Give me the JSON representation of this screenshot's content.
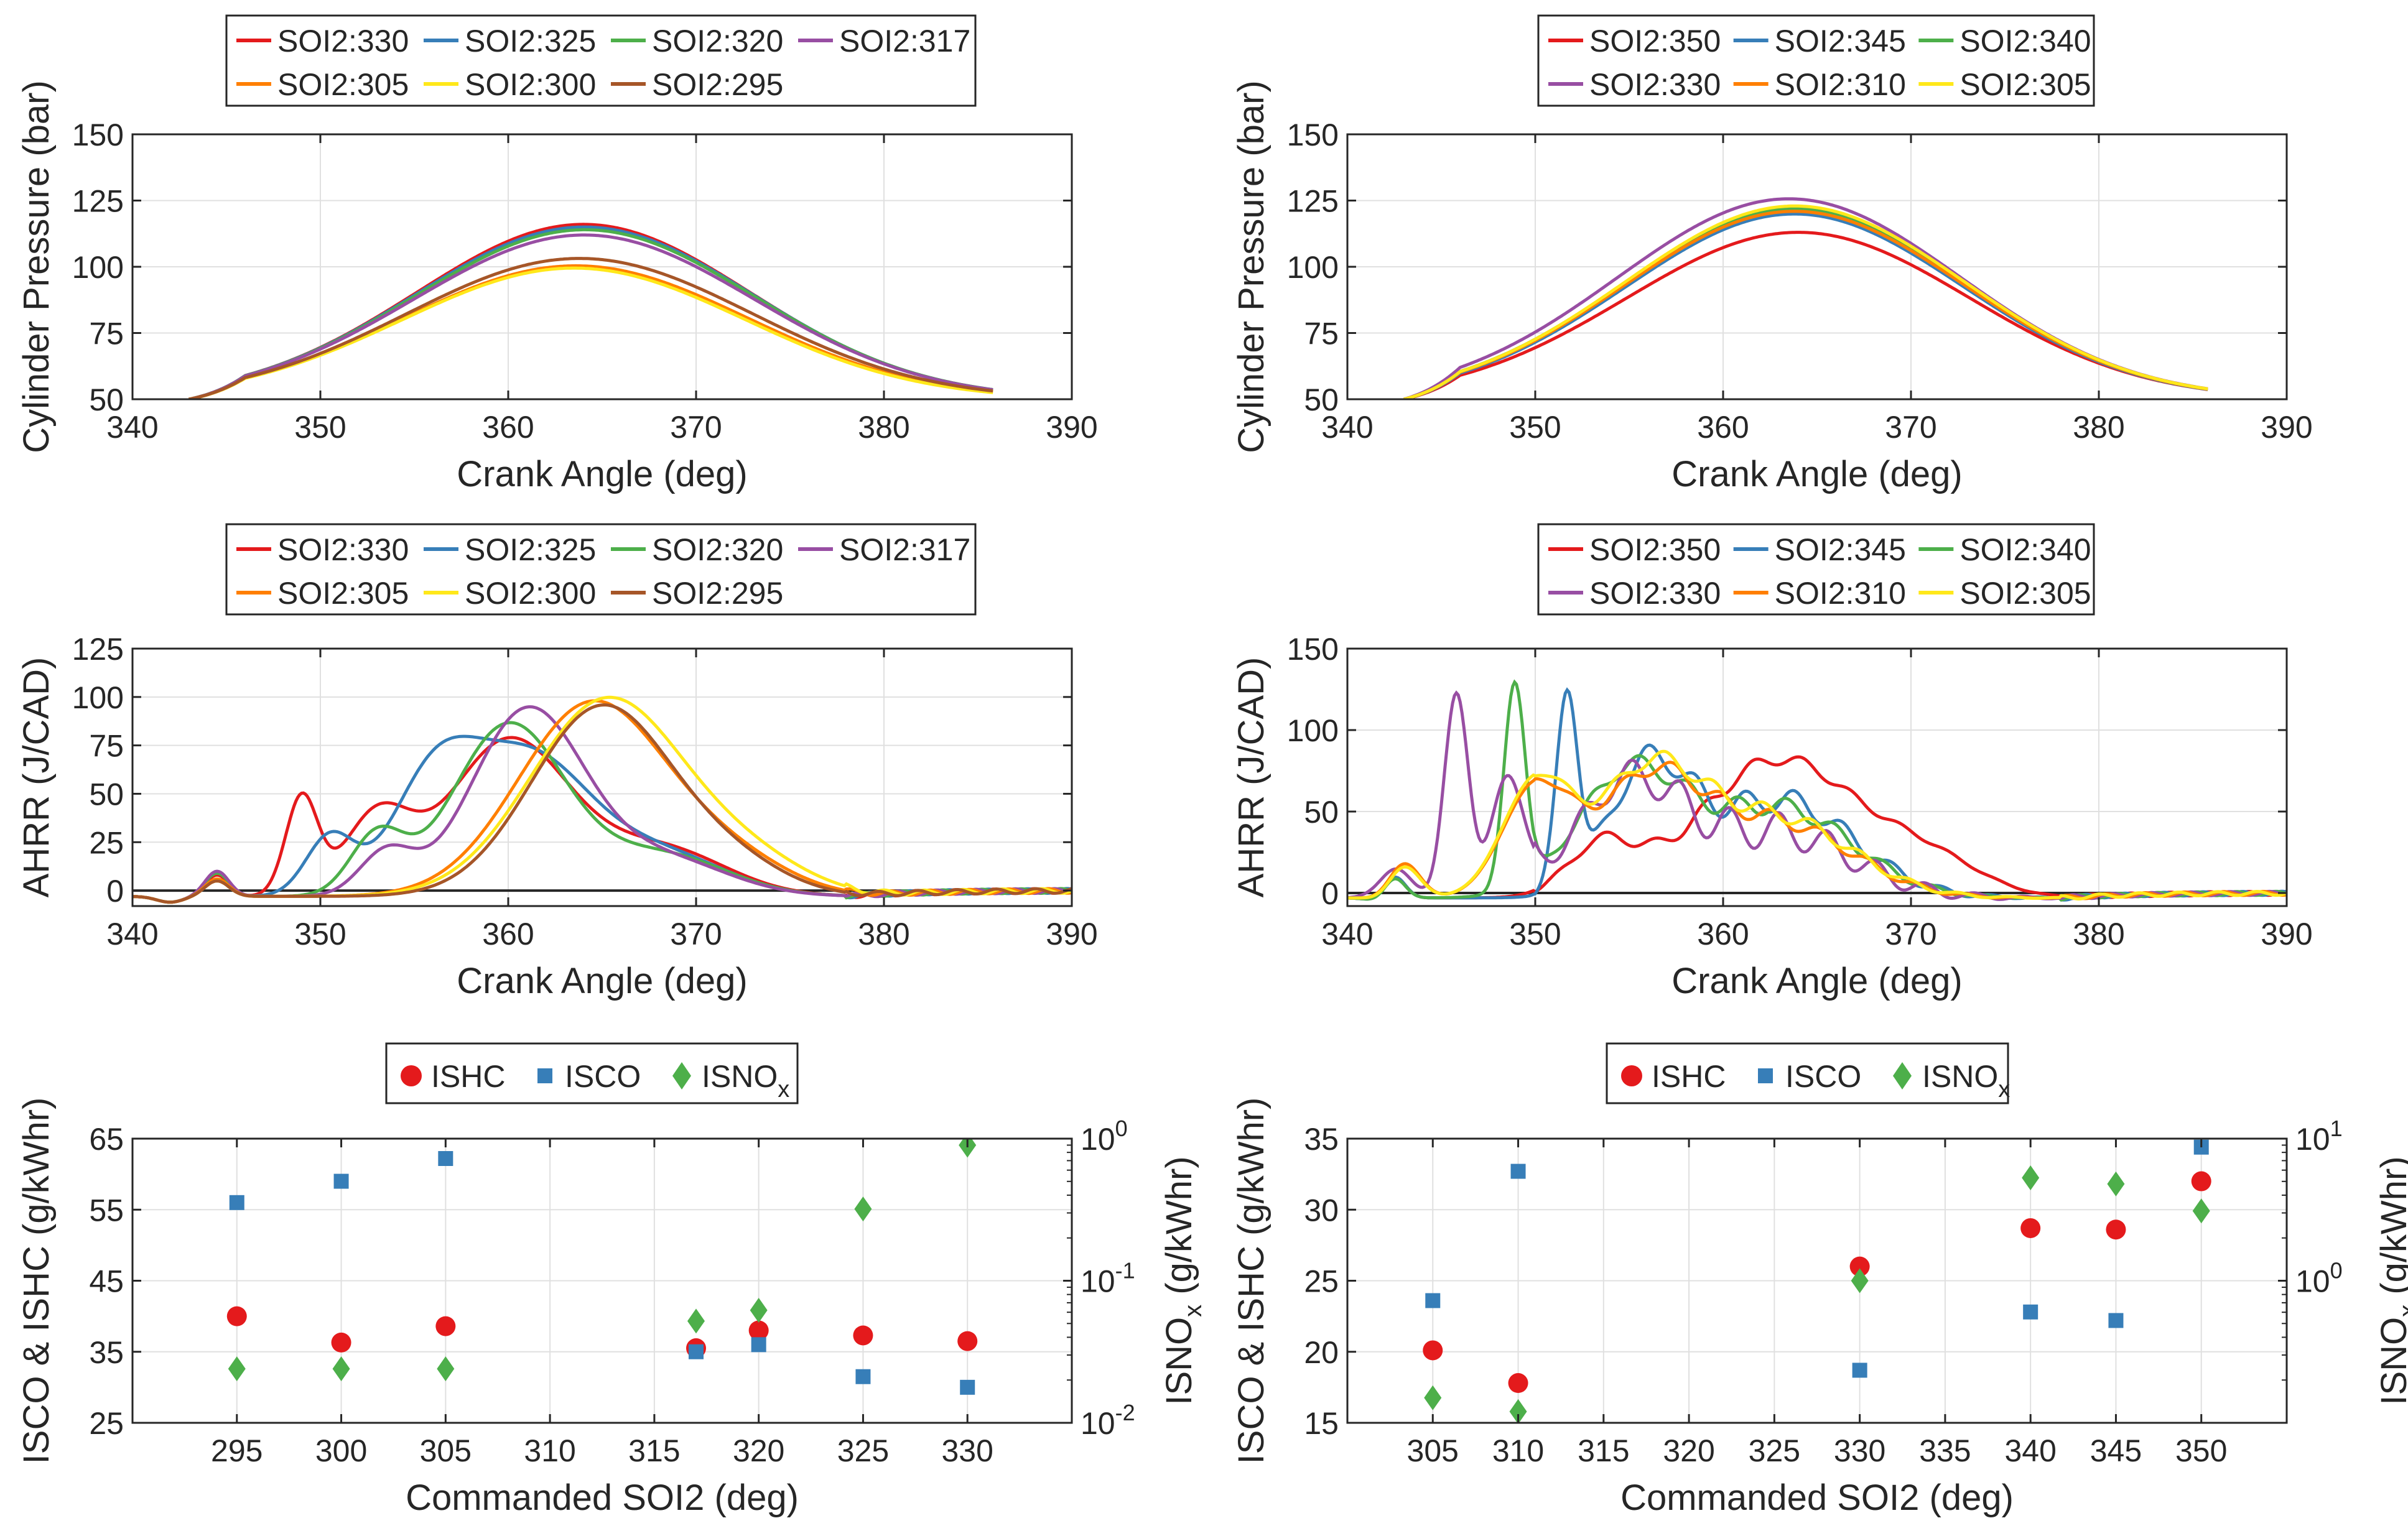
{
  "chart_data": [
    {
      "id": "p1",
      "type": "line",
      "xlabel": "Crank Angle (deg)",
      "ylabel": "Cylinder Pressure (bar)",
      "xlim": [
        340,
        390
      ],
      "ylim": [
        50,
        150
      ],
      "xticks": [
        340,
        350,
        360,
        370,
        380,
        390
      ],
      "yticks": [
        50,
        75,
        100,
        125,
        150
      ],
      "legend": {
        "columns": 4
      },
      "series": [
        {
          "name": "SOI2:330",
          "color": "#E41A1C",
          "peak_x": 364.0,
          "peak_y": 116,
          "width": 10.5
        },
        {
          "name": "SOI2:325",
          "color": "#377EB8",
          "peak_x": 364.3,
          "peak_y": 115,
          "width": 10.8
        },
        {
          "name": "SOI2:320",
          "color": "#4DAF4A",
          "peak_x": 364.6,
          "peak_y": 114,
          "width": 11.0
        },
        {
          "name": "SOI2:317",
          "color": "#984EA3",
          "peak_x": 364.5,
          "peak_y": 112,
          "width": 11.2
        },
        {
          "name": "SOI2:305",
          "color": "#FF7F00",
          "peak_x": 366.5,
          "peak_y": 100,
          "width": 12.5
        },
        {
          "name": "SOI2:300",
          "color": "#FFE81A",
          "peak_x": 366.8,
          "peak_y": 99,
          "width": 12.7
        },
        {
          "name": "SOI2:295",
          "color": "#A65628",
          "peak_x": 366.0,
          "peak_y": 103,
          "width": 12.2
        }
      ]
    },
    {
      "id": "p2",
      "type": "line",
      "xlabel": "Crank Angle (deg)",
      "ylabel": "Cylinder Pressure (bar)",
      "xlim": [
        340,
        390
      ],
      "ylim": [
        50,
        150
      ],
      "xticks": [
        340,
        350,
        360,
        370,
        380,
        390
      ],
      "yticks": [
        50,
        75,
        100,
        125,
        150
      ],
      "legend": {
        "columns": 3
      },
      "series": [
        {
          "name": "SOI2:350",
          "color": "#E41A1C",
          "peak_x": 364.0,
          "peak_y": 113,
          "width": 12.0
        },
        {
          "name": "SOI2:345",
          "color": "#377EB8",
          "peak_x": 363.0,
          "peak_y": 120,
          "width": 11.5
        },
        {
          "name": "SOI2:340",
          "color": "#4DAF4A",
          "peak_x": 362.8,
          "peak_y": 122,
          "width": 12.0
        },
        {
          "name": "SOI2:330",
          "color": "#984EA3",
          "peak_x": 362.0,
          "peak_y": 126,
          "width": 12.5
        },
        {
          "name": "SOI2:310",
          "color": "#FF7F00",
          "peak_x": 363.0,
          "peak_y": 121,
          "width": 12.0
        },
        {
          "name": "SOI2:305",
          "color": "#FFE81A",
          "peak_x": 363.2,
          "peak_y": 123,
          "width": 12.0
        }
      ]
    },
    {
      "id": "p3",
      "type": "line",
      "xlabel": "Crank Angle (deg)",
      "ylabel": "AHRR (J/CAD)",
      "xlim": [
        340,
        390
      ],
      "ylim": [
        -8,
        125
      ],
      "xticks": [
        340,
        350,
        360,
        370,
        380,
        390
      ],
      "yticks": [
        0,
        25,
        50,
        75,
        100,
        125
      ],
      "legend": {
        "columns": 4
      },
      "series": [
        {
          "name": "SOI2:330",
          "color": "#E41A1C",
          "peaks": [
            [
              344.5,
              11,
              0.9
            ],
            [
              349,
              50,
              1.2
            ],
            [
              353,
              40,
              2.5
            ],
            [
              360,
              80,
              4.5
            ],
            [
              368,
              25,
              5.0
            ]
          ]
        },
        {
          "name": "SOI2:325",
          "color": "#377EB8",
          "peaks": [
            [
              344.5,
              12,
              0.9
            ],
            [
              350.5,
              30,
              1.8
            ],
            [
              356,
              55,
              3.2
            ],
            [
              361,
              70,
              4.5
            ],
            [
              368,
              22,
              5.0
            ]
          ]
        },
        {
          "name": "SOI2:320",
          "color": "#4DAF4A",
          "peaks": [
            [
              344.5,
              12,
              0.9
            ],
            [
              353,
              30,
              2.0
            ],
            [
              360,
              88,
              4.2
            ],
            [
              368,
              22,
              5.0
            ]
          ]
        },
        {
          "name": "SOI2:317",
          "color": "#984EA3",
          "peaks": [
            [
              344.5,
              13,
              0.9
            ],
            [
              353.5,
              22,
              2.0
            ],
            [
              361,
              95,
              4.2
            ],
            [
              368,
              20,
              5.0
            ]
          ]
        },
        {
          "name": "SOI2:305",
          "color": "#FF7F00",
          "peaks": [
            [
              344.5,
              9,
              0.9
            ],
            [
              364.5,
              100,
              5.6
            ],
            [
              372,
              16,
              4.5
            ]
          ]
        },
        {
          "name": "SOI2:300",
          "color": "#FFE81A",
          "peaks": [
            [
              344.5,
              8,
              0.9
            ],
            [
              365.3,
              102,
              5.8
            ],
            [
              373,
              15,
              4.5
            ]
          ]
        },
        {
          "name": "SOI2:295",
          "color": "#A65628",
          "peaks": [
            [
              344.5,
              8,
              0.9
            ],
            [
              365,
              98,
              5.3
            ],
            [
              372,
              14,
              4.2
            ]
          ]
        }
      ]
    },
    {
      "id": "p4",
      "type": "line",
      "xlabel": "Crank Angle (deg)",
      "ylabel": "AHRR (J/CAD)",
      "xlim": [
        340,
        390
      ],
      "ylim": [
        -8,
        150
      ],
      "xticks": [
        340,
        350,
        360,
        370,
        380,
        390
      ],
      "yticks": [
        0,
        50,
        100,
        150
      ],
      "legend": {
        "columns": 3
      },
      "series": [
        {
          "name": "SOI2:350",
          "color": "#E41A1C",
          "peaks": [
            [
              342.5,
              15,
              0.8
            ],
            [
              353.5,
              30,
              2.5
            ],
            [
              363,
              85,
              6.0
            ],
            [
              371,
              20,
              4.0
            ]
          ],
          "wiggle": 4
        },
        {
          "name": "SOI2:345",
          "color": "#377EB8",
          "peaks": [
            [
              342.5,
              15,
              0.8
            ],
            [
              351.7,
              120,
              0.8
            ],
            [
              356,
              75,
              3.0
            ],
            [
              363,
              60,
              5.5
            ]
          ],
          "wiggle": 8
        },
        {
          "name": "SOI2:340",
          "color": "#4DAF4A",
          "peaks": [
            [
              342.5,
              14,
              0.8
            ],
            [
              348.9,
              125,
              0.8
            ],
            [
              355,
              75,
              4.0
            ],
            [
              363,
              55,
              5.5
            ]
          ],
          "wiggle": 6
        },
        {
          "name": "SOI2:330",
          "color": "#984EA3",
          "peaks": [
            [
              342.5,
              20,
              1.2
            ],
            [
              345.8,
              125,
              0.9
            ],
            [
              348.5,
              70,
              1.2
            ],
            [
              355,
              70,
              4.0
            ],
            [
              363,
              40,
              5.5
            ]
          ],
          "wiggle": 12
        },
        {
          "name": "SOI2:310",
          "color": "#FF7F00",
          "peaks": [
            [
              343,
              22,
              1.2
            ],
            [
              350,
              65,
              2.5
            ],
            [
              356,
              70,
              4.0
            ],
            [
              363,
              45,
              5.5
            ]
          ],
          "wiggle": 5
        },
        {
          "name": "SOI2:305",
          "color": "#FFE81A",
          "peaks": [
            [
              343,
              20,
              1.2
            ],
            [
              350,
              68,
              2.5
            ],
            [
              356,
              75,
              4.0
            ],
            [
              363,
              48,
              5.5
            ]
          ],
          "wiggle": 5
        }
      ]
    },
    {
      "id": "p5",
      "type": "scatter",
      "xlabel": "Commanded SOI2 (deg)",
      "ylabel": "ISCO & ISHC (g/kWhr)",
      "y2label": "ISNO",
      "y2label_sub": "x",
      "y2unit": " (g/kWhr)",
      "xlim": [
        290,
        335
      ],
      "ylim": [
        25,
        65
      ],
      "xticks": [
        295,
        300,
        305,
        310,
        315,
        320,
        325,
        330
      ],
      "yticks": [
        25,
        35,
        45,
        55,
        65
      ],
      "y2lim_log": [
        -2,
        0
      ],
      "y2ticks": [
        {
          "exp": -2,
          "label": "10",
          "sup": "-2"
        },
        {
          "exp": -1,
          "label": "10",
          "sup": "-1"
        },
        {
          "exp": 0,
          "label": "10",
          "sup": "0"
        }
      ],
      "legend": [
        {
          "name": "ISHC",
          "sub": "",
          "marker": "circle",
          "color": "#E41A1C"
        },
        {
          "name": "ISCO",
          "sub": "",
          "marker": "square",
          "color": "#377EB8"
        },
        {
          "name": "ISNO",
          "sub": "x",
          "marker": "diamond",
          "color": "#4DAF4A"
        }
      ],
      "ISHC": {
        "x": [
          295,
          300,
          305,
          317,
          320,
          325,
          330
        ],
        "y": [
          40.0,
          36.3,
          38.6,
          35.5,
          38.0,
          37.3,
          36.5
        ]
      },
      "ISCO": {
        "x": [
          295,
          300,
          305,
          317,
          320,
          325,
          330
        ],
        "y": [
          56.0,
          59.0,
          62.2,
          35.0,
          36.0,
          31.5,
          30.0
        ]
      },
      "ISNOx": {
        "x": [
          295,
          300,
          305,
          317,
          320,
          325,
          330
        ],
        "y": [
          0.024,
          0.024,
          0.024,
          0.052,
          0.062,
          0.32,
          0.9
        ]
      }
    },
    {
      "id": "p6",
      "type": "scatter",
      "xlabel": "Commanded SOI2 (deg)",
      "ylabel": "ISCO & ISHC (g/kWhr)",
      "y2label": "ISNO",
      "y2label_sub": "x",
      "y2unit": " (g/kWhr)",
      "xlim": [
        300,
        355
      ],
      "ylim": [
        15,
        35
      ],
      "xticks": [
        305,
        310,
        315,
        320,
        325,
        330,
        335,
        340,
        345,
        350
      ],
      "yticks": [
        15,
        20,
        25,
        30,
        35
      ],
      "y2lim_log": [
        -1,
        1
      ],
      "y2ticks": [
        {
          "exp": 0,
          "label": "10",
          "sup": "0"
        },
        {
          "exp": 1,
          "label": "10",
          "sup": "1"
        }
      ],
      "legend": [
        {
          "name": "ISHC",
          "sub": "",
          "marker": "circle",
          "color": "#E41A1C"
        },
        {
          "name": "ISCO",
          "sub": "",
          "marker": "square",
          "color": "#377EB8"
        },
        {
          "name": "ISNO",
          "sub": "x",
          "marker": "diamond",
          "color": "#4DAF4A"
        }
      ],
      "ISHC": {
        "x": [
          305,
          310,
          330,
          340,
          345,
          350
        ],
        "y": [
          20.1,
          17.8,
          26.0,
          28.7,
          28.6,
          32.0
        ]
      },
      "ISCO": {
        "x": [
          305,
          310,
          330,
          340,
          345,
          350
        ],
        "y": [
          23.6,
          32.7,
          18.7,
          22.8,
          22.2,
          34.4
        ]
      },
      "ISNOx": {
        "x": [
          305,
          310,
          330,
          340,
          345,
          350
        ],
        "y": [
          0.15,
          0.12,
          1.0,
          5.3,
          4.8,
          3.1
        ]
      }
    }
  ]
}
